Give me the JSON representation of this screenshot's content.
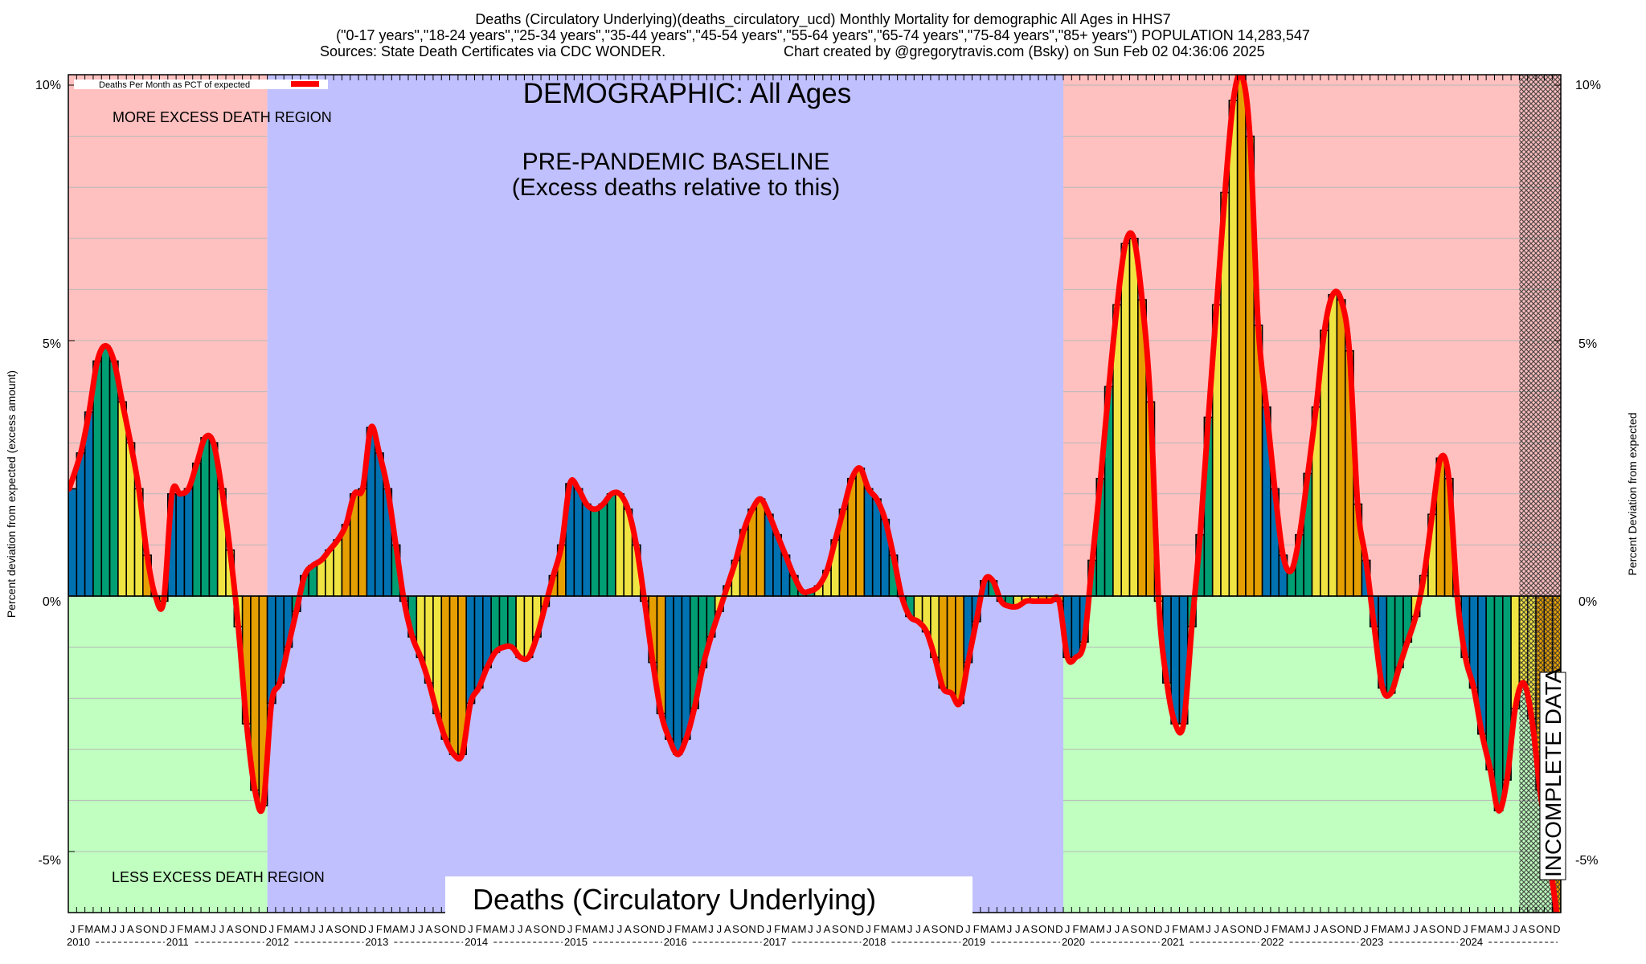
{
  "chart_data": {
    "type": "bar",
    "title_lines": [
      "Deaths (Circulatory Underlying)(deaths_circulatory_ucd) Monthly Mortality for demographic All Ages in HHS7",
      "(\"0-17 years\",\"18-24 years\",\"25-34 years\",\"35-44 years\",\"45-54 years\",\"55-64 years\",\"65-74 years\",\"75-84 years\",\"85+ years\") POPULATION 14,283,547",
      "Sources: State Death Certificates via CDC WONDER.",
      "Chart created by @gregorytravis.com (Bsky) on Sun Feb 02 04:36:06 2025"
    ],
    "ylabel_left": "Percent deviation from expected (excess amount)",
    "ylabel_right": "Percent Deviation from expected",
    "ylim": [
      -6.2,
      10.2
    ],
    "y_ticks": [
      {
        "value": 10,
        "label": "10%"
      },
      {
        "value": 5,
        "label": "5%"
      },
      {
        "value": 0,
        "label": "0%"
      },
      {
        "value": -5,
        "label": "-5%"
      }
    ],
    "y_gridlines": [
      -5,
      -4,
      -3,
      -2,
      -1,
      1,
      2,
      3,
      4,
      5,
      6,
      7,
      8,
      9,
      10
    ],
    "grid": true,
    "legend": {
      "label": "Deaths Per Month as PCT of expected",
      "color": "#ff0000",
      "placement": "top-left"
    },
    "annotations": {
      "demographic": "DEMOGRAPHIC: All Ages",
      "baseline_line1": "PRE-PANDEMIC BASELINE",
      "baseline_line2": "(Excess deaths relative to this)",
      "more_region": "MORE EXCESS DEATH REGION",
      "less_region": "LESS EXCESS DEATH REGION",
      "metric_box": "Deaths (Circulatory Underlying)",
      "incomplete": "INCOMPLETE DATA"
    },
    "month_letters": [
      "J",
      "F",
      "M",
      "A",
      "M",
      "J",
      "J",
      "A",
      "S",
      "O",
      "N",
      "D"
    ],
    "years": [
      "2010",
      "2011",
      "2012",
      "2013",
      "2014",
      "2015",
      "2016",
      "2017",
      "2018",
      "2019",
      "2020",
      "2021",
      "2022",
      "2023",
      "2024"
    ],
    "baseline_years": [
      "2012",
      "2013",
      "2014",
      "2015",
      "2016",
      "2017",
      "2018",
      "2019"
    ],
    "incomplete_from": "2024-08",
    "season_colors": {
      "winter": "#0072b2",
      "spring": "#009e73",
      "summer": "#f0e442",
      "autumn": "#e69f00"
    },
    "region_colors": {
      "more": "#ffc0c0",
      "less": "#c0ffc0",
      "baseline": "#c0c0ff"
    },
    "series": [
      {
        "name": "Deaths Per Month as PCT of expected",
        "values": [
          2.1,
          2.8,
          3.6,
          4.6,
          4.9,
          4.6,
          3.8,
          3.0,
          2.1,
          0.8,
          0.0,
          -0.1,
          2.0,
          2.0,
          2.1,
          2.6,
          3.1,
          3.0,
          2.1,
          0.9,
          -0.6,
          -2.5,
          -3.8,
          -4.1,
          -2.1,
          -1.7,
          -1.0,
          -0.3,
          0.4,
          0.6,
          0.7,
          0.9,
          1.1,
          1.4,
          2.0,
          2.1,
          3.3,
          2.8,
          2.1,
          1.0,
          -0.1,
          -0.8,
          -1.2,
          -1.7,
          -2.3,
          -2.8,
          -3.1,
          -3.1,
          -2.1,
          -1.8,
          -1.4,
          -1.1,
          -1.0,
          -1.0,
          -1.2,
          -1.2,
          -0.8,
          -0.2,
          0.4,
          1.0,
          2.2,
          2.1,
          1.8,
          1.7,
          1.8,
          2.0,
          2.0,
          1.7,
          1.0,
          -0.1,
          -1.3,
          -2.3,
          -2.8,
          -3.1,
          -2.8,
          -2.2,
          -1.4,
          -0.8,
          -0.3,
          0.2,
          0.7,
          1.3,
          1.7,
          1.9,
          1.6,
          1.2,
          0.8,
          0.4,
          0.1,
          0.1,
          0.2,
          0.5,
          1.1,
          1.7,
          2.3,
          2.5,
          2.1,
          1.9,
          1.5,
          0.8,
          0.0,
          -0.4,
          -0.5,
          -0.7,
          -1.2,
          -1.8,
          -1.9,
          -2.1,
          -1.3,
          -0.5,
          0.3,
          0.3,
          -0.1,
          -0.2,
          -0.2,
          -0.1,
          -0.1,
          -0.1,
          -0.1,
          -0.1,
          -1.2,
          -1.2,
          -0.9,
          0.7,
          2.3,
          4.1,
          5.7,
          6.9,
          7.0,
          5.8,
          3.8,
          -0.1,
          -1.7,
          -2.5,
          -2.5,
          -0.6,
          1.2,
          3.5,
          5.7,
          7.9,
          9.7,
          10.2,
          9.0,
          5.3,
          3.7,
          2.1,
          0.8,
          0.5,
          1.2,
          2.4,
          3.7,
          5.2,
          5.9,
          5.8,
          4.8,
          1.8,
          0.7,
          -0.6,
          -1.8,
          -1.9,
          -1.4,
          -0.9,
          -0.4,
          0.4,
          1.6,
          2.7,
          2.3,
          0.0,
          -1.2,
          -1.8,
          -2.7,
          -3.4,
          -4.2,
          -3.6,
          -2.2,
          -1.7,
          -2.4,
          -3.8,
          -5.0,
          -6.2
        ]
      }
    ]
  }
}
